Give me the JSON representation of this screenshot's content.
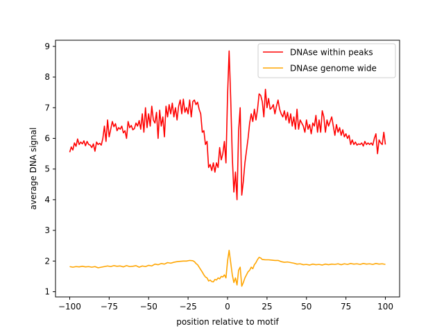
{
  "chart_data": {
    "type": "line",
    "title": "",
    "xlabel": "position relative to motif",
    "ylabel": "average DNA signal",
    "xlim": [
      -109,
      109
    ],
    "ylim": [
      0.83,
      9.2
    ],
    "xticks": [
      -100,
      -75,
      -50,
      -25,
      0,
      25,
      50,
      75,
      100
    ],
    "yticks": [
      1,
      2,
      3,
      4,
      5,
      6,
      7,
      8,
      9
    ],
    "grid": false,
    "legend_position": "top-right",
    "series": [
      {
        "name": "DNAse within peaks",
        "color": "#ff0000",
        "points": [
          [
            -100,
            5.55
          ],
          [
            -99,
            5.72
          ],
          [
            -98,
            5.62
          ],
          [
            -97,
            5.85
          ],
          [
            -96,
            5.74
          ],
          [
            -95,
            5.98
          ],
          [
            -94,
            5.8
          ],
          [
            -93,
            5.88
          ],
          [
            -92,
            5.82
          ],
          [
            -91,
            5.92
          ],
          [
            -90,
            5.76
          ],
          [
            -89,
            5.9
          ],
          [
            -88,
            5.8
          ],
          [
            -87,
            5.78
          ],
          [
            -86,
            5.7
          ],
          [
            -85,
            5.82
          ],
          [
            -84,
            5.58
          ],
          [
            -83,
            5.88
          ],
          [
            -82,
            5.8
          ],
          [
            -81,
            5.84
          ],
          [
            -80,
            5.78
          ],
          [
            -79,
            6.0
          ],
          [
            -78,
            6.4
          ],
          [
            -77,
            5.9
          ],
          [
            -76,
            6.6
          ],
          [
            -75,
            6.05
          ],
          [
            -74,
            6.3
          ],
          [
            -73,
            6.55
          ],
          [
            -72,
            6.38
          ],
          [
            -71,
            6.48
          ],
          [
            -70,
            6.25
          ],
          [
            -69,
            6.35
          ],
          [
            -68,
            6.3
          ],
          [
            -67,
            6.4
          ],
          [
            -66,
            6.18
          ],
          [
            -65,
            6.25
          ],
          [
            -64,
            6.0
          ],
          [
            -63,
            6.55
          ],
          [
            -62,
            6.35
          ],
          [
            -61,
            6.42
          ],
          [
            -60,
            6.28
          ],
          [
            -59,
            6.32
          ],
          [
            -58,
            6.5
          ],
          [
            -57,
            6.4
          ],
          [
            -56,
            6.58
          ],
          [
            -55,
            6.3
          ],
          [
            -54,
            6.8
          ],
          [
            -53,
            6.2
          ],
          [
            -52,
            7.0
          ],
          [
            -51,
            6.35
          ],
          [
            -50,
            6.8
          ],
          [
            -49,
            6.4
          ],
          [
            -48,
            7.05
          ],
          [
            -47,
            6.6
          ],
          [
            -46,
            6.5
          ],
          [
            -45,
            6.85
          ],
          [
            -44,
            6.0
          ],
          [
            -43,
            6.92
          ],
          [
            -42,
            6.4
          ],
          [
            -41,
            6.7
          ],
          [
            -40,
            6.05
          ],
          [
            -39,
            7.05
          ],
          [
            -38,
            6.7
          ],
          [
            -37,
            7.1
          ],
          [
            -36,
            6.8
          ],
          [
            -35,
            7.15
          ],
          [
            -34,
            6.7
          ],
          [
            -33,
            7.0
          ],
          [
            -32,
            6.6
          ],
          [
            -31,
            7.05
          ],
          [
            -30,
            7.25
          ],
          [
            -29,
            6.8
          ],
          [
            -28,
            7.28
          ],
          [
            -27,
            6.85
          ],
          [
            -26,
            7.0
          ],
          [
            -25,
            6.8
          ],
          [
            -24,
            7.25
          ],
          [
            -23,
            6.7
          ],
          [
            -22,
            7.2
          ],
          [
            -21,
            7.25
          ],
          [
            -20,
            7.1
          ],
          [
            -19,
            7.18
          ],
          [
            -18,
            6.95
          ],
          [
            -17,
            6.8
          ],
          [
            -16,
            6.2
          ],
          [
            -15,
            6.25
          ],
          [
            -14,
            5.8
          ],
          [
            -13,
            5.9
          ],
          [
            -12,
            5.05
          ],
          [
            -11,
            5.15
          ],
          [
            -10,
            4.95
          ],
          [
            -9,
            5.2
          ],
          [
            -8,
            4.9
          ],
          [
            -7,
            5.2
          ],
          [
            -6,
            5.05
          ],
          [
            -5,
            5.7
          ],
          [
            -4,
            5.3
          ],
          [
            -3,
            5.5
          ],
          [
            -2,
            5.9
          ],
          [
            -1,
            5.2
          ],
          [
            0,
            7.4
          ],
          [
            1,
            8.85
          ],
          [
            2,
            7.3
          ],
          [
            3,
            5.4
          ],
          [
            4,
            4.25
          ],
          [
            5,
            4.9
          ],
          [
            6,
            4.0
          ],
          [
            7,
            6.25
          ],
          [
            8,
            7.0
          ],
          [
            9,
            4.15
          ],
          [
            10,
            4.6
          ],
          [
            11,
            5.2
          ],
          [
            12,
            5.6
          ],
          [
            13,
            6.0
          ],
          [
            14,
            6.5
          ],
          [
            15,
            6.8
          ],
          [
            16,
            6.55
          ],
          [
            17,
            6.95
          ],
          [
            18,
            6.6
          ],
          [
            19,
            6.95
          ],
          [
            20,
            7.45
          ],
          [
            21,
            7.4
          ],
          [
            22,
            7.2
          ],
          [
            23,
            6.7
          ],
          [
            24,
            7.6
          ],
          [
            25,
            7.0
          ],
          [
            26,
            7.3
          ],
          [
            27,
            6.95
          ],
          [
            28,
            7.0
          ],
          [
            29,
            7.1
          ],
          [
            30,
            6.8
          ],
          [
            31,
            7.05
          ],
          [
            32,
            7.25
          ],
          [
            33,
            6.95
          ],
          [
            34,
            6.8
          ],
          [
            35,
            6.7
          ],
          [
            36,
            6.9
          ],
          [
            37,
            6.6
          ],
          [
            38,
            6.85
          ],
          [
            39,
            6.5
          ],
          [
            40,
            6.8
          ],
          [
            41,
            6.4
          ],
          [
            42,
            6.7
          ],
          [
            43,
            6.3
          ],
          [
            44,
            6.95
          ],
          [
            45,
            6.3
          ],
          [
            46,
            6.6
          ],
          [
            47,
            6.5
          ],
          [
            48,
            6.4
          ],
          [
            49,
            6.2
          ],
          [
            50,
            6.6
          ],
          [
            51,
            6.3
          ],
          [
            52,
            6.45
          ],
          [
            53,
            6.15
          ],
          [
            54,
            6.5
          ],
          [
            55,
            6.4
          ],
          [
            56,
            6.75
          ],
          [
            57,
            6.2
          ],
          [
            58,
            6.6
          ],
          [
            59,
            6.2
          ],
          [
            60,
            6.9
          ],
          [
            61,
            6.7
          ],
          [
            62,
            6.2
          ],
          [
            63,
            6.6
          ],
          [
            64,
            6.4
          ],
          [
            65,
            6.55
          ],
          [
            66,
            6.7
          ],
          [
            67,
            6.4
          ],
          [
            68,
            6.1
          ],
          [
            69,
            6.45
          ],
          [
            70,
            6.2
          ],
          [
            71,
            6.35
          ],
          [
            72,
            6.1
          ],
          [
            73,
            6.28
          ],
          [
            74,
            6.05
          ],
          [
            75,
            6.15
          ],
          [
            76,
            6.0
          ],
          [
            77,
            6.1
          ],
          [
            78,
            5.8
          ],
          [
            79,
            5.95
          ],
          [
            80,
            5.8
          ],
          [
            81,
            5.88
          ],
          [
            82,
            5.78
          ],
          [
            83,
            5.82
          ],
          [
            84,
            5.8
          ],
          [
            85,
            5.85
          ],
          [
            86,
            5.75
          ],
          [
            87,
            5.9
          ],
          [
            88,
            5.8
          ],
          [
            89,
            5.85
          ],
          [
            90,
            5.8
          ],
          [
            91,
            5.85
          ],
          [
            92,
            5.78
          ],
          [
            93,
            6.0
          ],
          [
            94,
            6.15
          ],
          [
            95,
            5.5
          ],
          [
            96,
            5.95
          ],
          [
            97,
            5.85
          ],
          [
            98,
            5.8
          ],
          [
            99,
            6.2
          ],
          [
            100,
            5.8
          ]
        ]
      },
      {
        "name": "DNAse genome wide",
        "color": "#ffa500",
        "points": [
          [
            -100,
            1.82
          ],
          [
            -98,
            1.8
          ],
          [
            -96,
            1.82
          ],
          [
            -94,
            1.81
          ],
          [
            -92,
            1.83
          ],
          [
            -90,
            1.81
          ],
          [
            -88,
            1.82
          ],
          [
            -86,
            1.8
          ],
          [
            -84,
            1.82
          ],
          [
            -82,
            1.78
          ],
          [
            -80,
            1.8
          ],
          [
            -78,
            1.82
          ],
          [
            -76,
            1.84
          ],
          [
            -74,
            1.82
          ],
          [
            -72,
            1.85
          ],
          [
            -70,
            1.83
          ],
          [
            -68,
            1.84
          ],
          [
            -66,
            1.81
          ],
          [
            -64,
            1.85
          ],
          [
            -62,
            1.82
          ],
          [
            -60,
            1.83
          ],
          [
            -58,
            1.85
          ],
          [
            -56,
            1.8
          ],
          [
            -54,
            1.84
          ],
          [
            -52,
            1.82
          ],
          [
            -50,
            1.86
          ],
          [
            -48,
            1.84
          ],
          [
            -46,
            1.9
          ],
          [
            -44,
            1.88
          ],
          [
            -42,
            1.92
          ],
          [
            -40,
            1.9
          ],
          [
            -38,
            1.95
          ],
          [
            -36,
            1.93
          ],
          [
            -34,
            1.96
          ],
          [
            -32,
            1.98
          ],
          [
            -30,
            1.99
          ],
          [
            -28,
            2.0
          ],
          [
            -26,
            2.0
          ],
          [
            -24,
            2.02
          ],
          [
            -22,
            2.01
          ],
          [
            -21,
            1.98
          ],
          [
            -20,
            1.92
          ],
          [
            -19,
            1.88
          ],
          [
            -18,
            1.8
          ],
          [
            -17,
            1.72
          ],
          [
            -16,
            1.64
          ],
          [
            -15,
            1.55
          ],
          [
            -14,
            1.48
          ],
          [
            -13,
            1.45
          ],
          [
            -12,
            1.35
          ],
          [
            -11,
            1.38
          ],
          [
            -10,
            1.33
          ],
          [
            -9,
            1.32
          ],
          [
            -8,
            1.4
          ],
          [
            -7,
            1.38
          ],
          [
            -6,
            1.45
          ],
          [
            -5,
            1.42
          ],
          [
            -4,
            1.5
          ],
          [
            -3,
            1.48
          ],
          [
            -2,
            1.55
          ],
          [
            -1,
            1.45
          ],
          [
            0,
            2.0
          ],
          [
            1,
            2.35
          ],
          [
            2,
            1.95
          ],
          [
            3,
            1.55
          ],
          [
            4,
            1.3
          ],
          [
            5,
            1.45
          ],
          [
            6,
            1.22
          ],
          [
            7,
            1.7
          ],
          [
            8,
            1.8
          ],
          [
            9,
            1.18
          ],
          [
            10,
            1.3
          ],
          [
            11,
            1.45
          ],
          [
            12,
            1.55
          ],
          [
            13,
            1.65
          ],
          [
            14,
            1.7
          ],
          [
            15,
            1.8
          ],
          [
            16,
            1.75
          ],
          [
            17,
            1.88
          ],
          [
            18,
            1.95
          ],
          [
            19,
            2.05
          ],
          [
            20,
            2.12
          ],
          [
            21,
            2.1
          ],
          [
            22,
            2.05
          ],
          [
            24,
            2.04
          ],
          [
            26,
            2.04
          ],
          [
            28,
            2.03
          ],
          [
            30,
            2.02
          ],
          [
            32,
            2.02
          ],
          [
            34,
            1.98
          ],
          [
            36,
            1.96
          ],
          [
            38,
            1.97
          ],
          [
            40,
            1.95
          ],
          [
            42,
            1.93
          ],
          [
            44,
            1.9
          ],
          [
            46,
            1.91
          ],
          [
            48,
            1.88
          ],
          [
            50,
            1.89
          ],
          [
            52,
            1.87
          ],
          [
            54,
            1.9
          ],
          [
            56,
            1.88
          ],
          [
            58,
            1.89
          ],
          [
            60,
            1.87
          ],
          [
            62,
            1.9
          ],
          [
            64,
            1.88
          ],
          [
            66,
            1.9
          ],
          [
            68,
            1.89
          ],
          [
            70,
            1.91
          ],
          [
            72,
            1.88
          ],
          [
            74,
            1.91
          ],
          [
            76,
            1.89
          ],
          [
            78,
            1.92
          ],
          [
            80,
            1.9
          ],
          [
            82,
            1.91
          ],
          [
            84,
            1.89
          ],
          [
            86,
            1.92
          ],
          [
            88,
            1.9
          ],
          [
            90,
            1.91
          ],
          [
            92,
            1.89
          ],
          [
            94,
            1.92
          ],
          [
            96,
            1.9
          ],
          [
            98,
            1.91
          ],
          [
            100,
            1.89
          ]
        ]
      }
    ]
  }
}
